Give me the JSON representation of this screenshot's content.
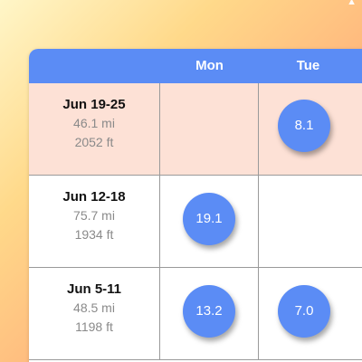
{
  "header": {
    "days": [
      "Mon",
      "Tue"
    ]
  },
  "weeks": [
    {
      "range": "Jun 19-25",
      "distance": "46.1 mi",
      "elevation": "2052 ft",
      "mon": "",
      "tue": "8.1",
      "highlighted": true
    },
    {
      "range": "Jun 12-18",
      "distance": "75.7 mi",
      "elevation": "1934 ft",
      "mon": "19.1",
      "tue": "",
      "highlighted": false
    },
    {
      "range": "Jun 5-11",
      "distance": "48.5 mi",
      "elevation": "1198 ft",
      "mon": "13.2",
      "tue": "7.0",
      "highlighted": false
    }
  ],
  "colors": {
    "accent": "#5b8cf5",
    "highlight_row": "#fde1d6",
    "grid_line": "#9a9a9a"
  },
  "icons": {
    "top_right": "up-arrow-icon"
  }
}
